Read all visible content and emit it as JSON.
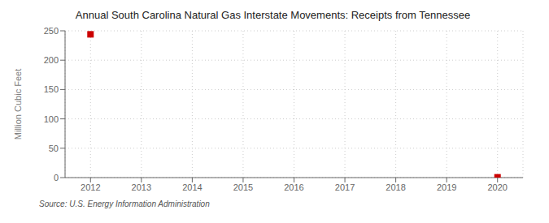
{
  "chart_data": {
    "type": "scatter",
    "title": "Annual South Carolina Natural Gas Interstate Movements: Receipts from Tennessee",
    "y_label": "Million Cubic Feet",
    "annotations": [
      "Source: U.S. Energy Information Administration"
    ],
    "x": [
      2012,
      2020
    ],
    "values": [
      244.0,
      0.5
    ],
    "color": "#cc0000",
    "marker": "square",
    "xlim": [
      2011.5,
      2020.5
    ],
    "xticks": [
      2012,
      2013,
      2014,
      2015,
      2016,
      2017,
      2018,
      2019,
      2020
    ],
    "ylim": [
      0,
      250
    ],
    "yticks": [
      0,
      50,
      100,
      150,
      200,
      250
    ],
    "grid": true
  }
}
